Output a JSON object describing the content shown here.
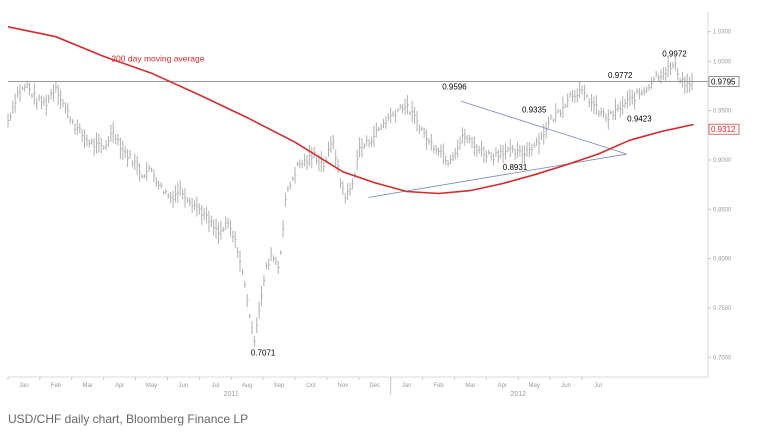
{
  "caption": "USD/CHF daily chart, Bloomberg Finance LP",
  "chart_data": {
    "type": "line",
    "ylim": [
      0.68,
      1.05
    ],
    "yticks": [
      {
        "value": 1.03,
        "label": "1.0300"
      },
      {
        "value": 1.0,
        "label": "1.0000"
      },
      {
        "value": 0.95,
        "label": "0.9500"
      },
      {
        "value": 0.9,
        "label": "0.9000"
      },
      {
        "value": 0.85,
        "label": "0.8500"
      },
      {
        "value": 0.8,
        "label": "0.8000"
      },
      {
        "value": 0.75,
        "label": "0.7500"
      },
      {
        "value": 0.7,
        "label": "0.7000"
      }
    ],
    "x_months": [
      "Jan",
      "Feb",
      "Mar",
      "Apr",
      "May",
      "Jun",
      "Jul",
      "Aug",
      "Sep",
      "Oct",
      "Nov",
      "Dec",
      "Jan",
      "Feb",
      "Mar",
      "Apr",
      "May",
      "Jun",
      "Jul"
    ],
    "years": [
      {
        "label": "2011",
        "month_index": 7
      },
      {
        "label": "2012",
        "month_index": 16
      }
    ],
    "series": [
      {
        "type": "bars",
        "color": "#b0b0b0",
        "points": [
          [
            0.0,
            0.94
          ],
          [
            0.3,
            0.968
          ],
          [
            0.6,
            0.975
          ],
          [
            0.9,
            0.96
          ],
          [
            1.2,
            0.958
          ],
          [
            1.5,
            0.975
          ],
          [
            1.8,
            0.952
          ],
          [
            2.1,
            0.935
          ],
          [
            2.4,
            0.922
          ],
          [
            2.7,
            0.915
          ],
          [
            3.0,
            0.912
          ],
          [
            3.3,
            0.93
          ],
          [
            3.6,
            0.91
          ],
          [
            3.9,
            0.9
          ],
          [
            4.2,
            0.886
          ],
          [
            4.5,
            0.89
          ],
          [
            4.8,
            0.872
          ],
          [
            5.1,
            0.862
          ],
          [
            5.4,
            0.87
          ],
          [
            5.7,
            0.86
          ],
          [
            6.0,
            0.85
          ],
          [
            6.3,
            0.838
          ],
          [
            6.6,
            0.825
          ],
          [
            6.9,
            0.835
          ],
          [
            7.2,
            0.81
          ],
          [
            7.5,
            0.76
          ],
          [
            7.7,
            0.715
          ],
          [
            7.9,
            0.755
          ],
          [
            8.1,
            0.79
          ],
          [
            8.3,
            0.805
          ],
          [
            8.5,
            0.79
          ],
          [
            8.7,
            0.86
          ],
          [
            8.9,
            0.88
          ],
          [
            9.1,
            0.895
          ],
          [
            9.3,
            0.898
          ],
          [
            9.6,
            0.905
          ],
          [
            9.9,
            0.895
          ],
          [
            10.2,
            0.92
          ],
          [
            10.4,
            0.88
          ],
          [
            10.6,
            0.862
          ],
          [
            10.8,
            0.875
          ],
          [
            11.0,
            0.91
          ],
          [
            11.3,
            0.918
          ],
          [
            11.6,
            0.93
          ],
          [
            11.9,
            0.942
          ],
          [
            12.2,
            0.95
          ],
          [
            12.4,
            0.956
          ],
          [
            12.6,
            0.95
          ],
          [
            12.9,
            0.935
          ],
          [
            13.2,
            0.918
          ],
          [
            13.5,
            0.912
          ],
          [
            13.8,
            0.9
          ],
          [
            14.1,
            0.913
          ],
          [
            14.3,
            0.925
          ],
          [
            14.6,
            0.915
          ],
          [
            14.9,
            0.908
          ],
          [
            15.2,
            0.904
          ],
          [
            15.5,
            0.91
          ],
          [
            15.8,
            0.908
          ],
          [
            16.1,
            0.906
          ],
          [
            16.4,
            0.913
          ],
          [
            16.7,
            0.922
          ],
          [
            17.0,
            0.94
          ],
          [
            17.3,
            0.95
          ],
          [
            17.6,
            0.965
          ],
          [
            17.9,
            0.97
          ],
          [
            18.2,
            0.962
          ],
          [
            18.5,
            0.95
          ],
          [
            18.8,
            0.942
          ],
          [
            19.1,
            0.95
          ],
          [
            19.4,
            0.958
          ],
          [
            19.7,
            0.965
          ],
          [
            20.0,
            0.972
          ],
          [
            20.3,
            0.985
          ],
          [
            20.6,
            0.99
          ],
          [
            20.9,
            0.996
          ],
          [
            21.1,
            0.982
          ],
          [
            21.3,
            0.976
          ],
          [
            21.5,
            0.98
          ]
        ]
      },
      {
        "type": "line",
        "name": "200 day moving average",
        "color": "#d42a2a",
        "points": [
          [
            0.0,
            1.035
          ],
          [
            1.5,
            1.025
          ],
          [
            3.0,
            1.005
          ],
          [
            4.5,
            0.988
          ],
          [
            6.0,
            0.966
          ],
          [
            7.5,
            0.943
          ],
          [
            9.0,
            0.918
          ],
          [
            10.5,
            0.888
          ],
          [
            11.5,
            0.877
          ],
          [
            12.5,
            0.868
          ],
          [
            13.5,
            0.866
          ],
          [
            14.5,
            0.869
          ],
          [
            15.5,
            0.876
          ],
          [
            16.5,
            0.885
          ],
          [
            17.5,
            0.895
          ],
          [
            18.5,
            0.906
          ],
          [
            19.5,
            0.92
          ],
          [
            20.5,
            0.929
          ],
          [
            21.5,
            0.936
          ]
        ]
      }
    ],
    "horizontal_line": {
      "value": 0.9795,
      "label": "0.9795"
    },
    "trendlines": [
      {
        "points": [
          [
            14.2,
            0.9596
          ],
          [
            19.4,
            0.906
          ]
        ]
      },
      {
        "points": [
          [
            11.3,
            0.862
          ],
          [
            19.4,
            0.906
          ]
        ]
      }
    ],
    "last_value_labels": [
      {
        "value": 0.9795,
        "label": "0.9795"
      },
      {
        "value": 0.9312,
        "label": "0.9312",
        "color": "#d42a2a"
      }
    ],
    "annotations": [
      {
        "text": "0.9972",
        "x": 20.9,
        "y": 1.005
      },
      {
        "text": "0.9772",
        "x": 19.2,
        "y": 0.983
      },
      {
        "text": "0.9596",
        "x": 14.0,
        "y": 0.9715
      },
      {
        "text": "0.9335",
        "x": 16.5,
        "y": 0.948
      },
      {
        "text": "0.9423",
        "x": 19.8,
        "y": 0.939
      },
      {
        "text": "0.8931",
        "x": 15.9,
        "y": 0.89
      },
      {
        "text": "0.7071",
        "x": 8.0,
        "y": 0.702
      },
      {
        "text": "200 day moving average",
        "x": 4.7,
        "y": 1.0,
        "color": "#d42a2a"
      }
    ]
  }
}
